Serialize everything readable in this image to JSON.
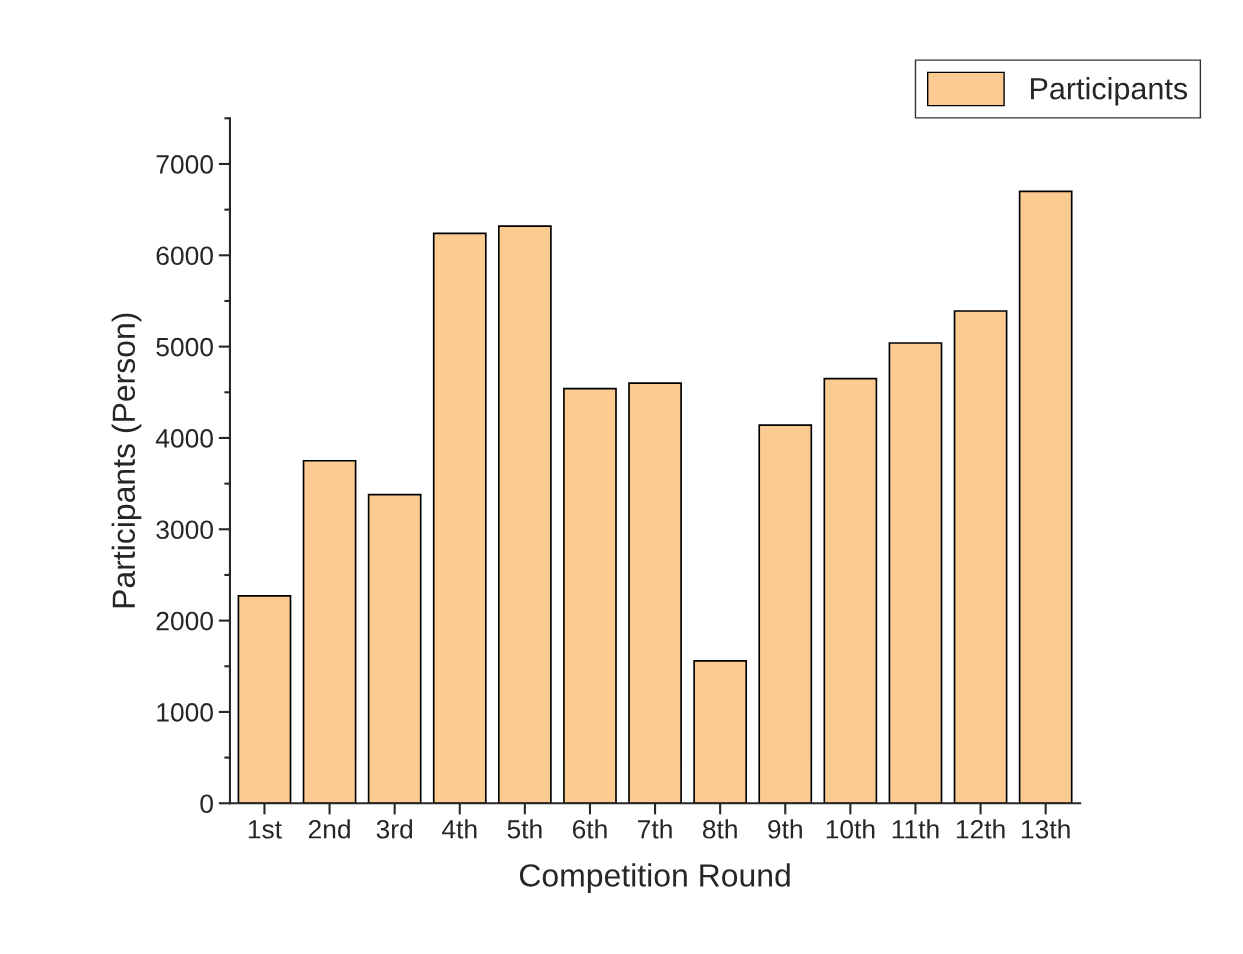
{
  "chart_data": {
    "type": "bar",
    "xlabel": "Competition Round",
    "ylabel": "Participants (Person)",
    "categories": [
      "1st",
      "2nd",
      "3rd",
      "4th",
      "5th",
      "6th",
      "7th",
      "8th",
      "9th",
      "10th",
      "11th",
      "12th",
      "13th"
    ],
    "series": [
      {
        "name": "Participants",
        "color": "#fccb92",
        "values": [
          2270,
          3750,
          3380,
          6240,
          6320,
          4540,
          4600,
          1560,
          4140,
          4650,
          5040,
          5390,
          6700
        ]
      }
    ],
    "ylim": [
      0,
      7500
    ],
    "yticks": [
      0,
      1000,
      2000,
      3000,
      4000,
      5000,
      6000,
      7000
    ],
    "grid": false,
    "legend": "top right"
  }
}
